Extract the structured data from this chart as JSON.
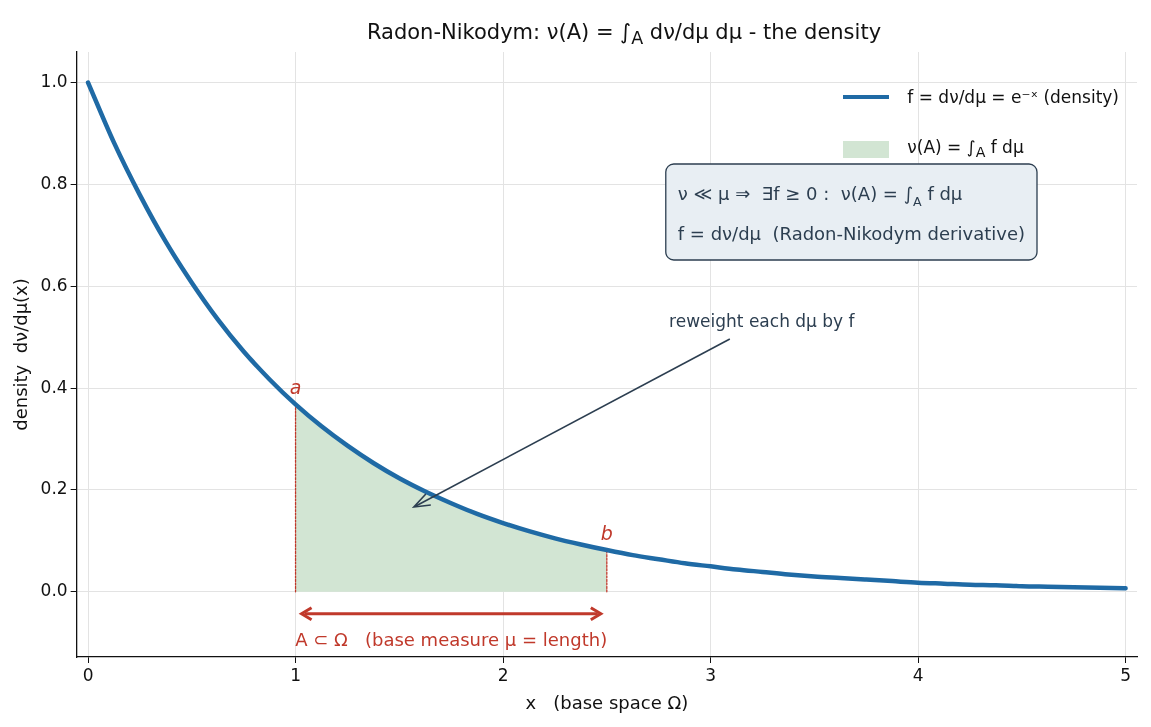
{
  "chart_data": {
    "type": "line",
    "title": "Radon-Nikodym: ν(A) = ∫$_{A}$ dν/dμ dμ - the density",
    "xlabel": "x   (base space Ω)",
    "ylabel": "density  dν/dμ(x)",
    "xlim": [
      -0.055,
      5.055
    ],
    "ylim": [
      -0.128,
      1.06
    ],
    "xticks": [
      0,
      1,
      2,
      3,
      4,
      5
    ],
    "yticks": [
      {
        "value": 0,
        "label": "0.0"
      },
      {
        "value": 0.2,
        "label": "0.2"
      },
      {
        "value": 0.4,
        "label": "0.4"
      },
      {
        "value": 0.6,
        "label": "0.6"
      },
      {
        "value": 0.8,
        "label": "0.8"
      },
      {
        "value": 1,
        "label": "1.0"
      }
    ],
    "grid": true,
    "legend": "top right",
    "series": [
      {
        "name": "f = dν/dμ = e⁻ˣ  (density)",
        "color": "#1f6aa5",
        "x": [
          0,
          0.125,
          0.25,
          0.375,
          0.5,
          0.625,
          0.75,
          0.875,
          1,
          1.125,
          1.25,
          1.375,
          1.5,
          1.625,
          1.75,
          1.875,
          2,
          2.125,
          2.25,
          2.375,
          2.5,
          2.625,
          2.75,
          2.875,
          3,
          3.125,
          3.25,
          3.375,
          3.5,
          3.625,
          3.75,
          3.875,
          4,
          4.125,
          4.25,
          4.375,
          4.5,
          4.625,
          4.75,
          4.875,
          5
        ],
        "values": [
          1,
          0.882,
          0.779,
          0.687,
          0.607,
          0.535,
          0.472,
          0.417,
          0.368,
          0.325,
          0.287,
          0.253,
          0.223,
          0.197,
          0.174,
          0.153,
          0.135,
          0.119,
          0.105,
          0.093,
          0.082,
          0.072,
          0.064,
          0.056,
          0.05,
          0.044,
          0.039,
          0.034,
          0.03,
          0.027,
          0.024,
          0.021,
          0.018,
          0.016,
          0.014,
          0.013,
          0.011,
          0.01,
          0.009,
          0.008,
          0.007
        ]
      },
      {
        "name": "ν(A) = ∫$_{A}$ f dμ",
        "type": "area",
        "color": "#d2e5d3",
        "x": [
          1,
          1.125,
          1.25,
          1.375,
          1.5,
          1.625,
          1.75,
          1.875,
          2,
          2.125,
          2.25,
          2.375,
          2.5
        ],
        "values": [
          0.368,
          0.325,
          0.287,
          0.253,
          0.223,
          0.197,
          0.174,
          0.153,
          0.135,
          0.119,
          0.105,
          0.093,
          0.082
        ]
      },
      {
        "color": "#c0392b",
        "line_style": "dotted",
        "x": [
          1,
          1
        ],
        "values": [
          0,
          0.368
        ]
      },
      {
        "color": "#c0392b",
        "line_style": "dotted",
        "x": [
          2.5,
          2.5
        ],
        "values": [
          0,
          0.082
        ]
      }
    ],
    "annotations": [
      {
        "text": "a",
        "x": 1,
        "y": 0.368
      },
      {
        "text": "b",
        "x": 2.5,
        "y": 0.082
      },
      "reweight each dμ by f",
      "A ⊂ Ω   (base measure μ = length)",
      "ν ≪ μ ⇒  ∃f ≥ 0 :  ν(A) = ∫$_{A}$ f dμ",
      "f = dν/dμ  (Radon-Nikodym derivative)"
    ]
  }
}
